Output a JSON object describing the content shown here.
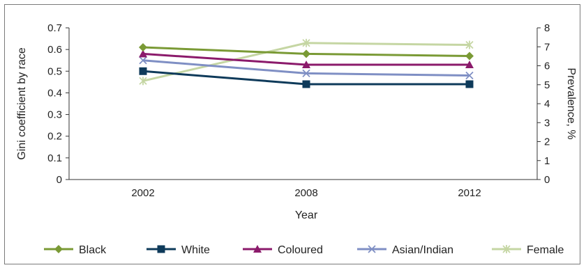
{
  "chart_data": {
    "type": "line",
    "x": [
      "2002",
      "2008",
      "2012"
    ],
    "xlabel": "Year",
    "ylabel_left": "Gini coefficient by race",
    "ylabel_right": "Prevalence, %",
    "ylim_left": [
      0,
      0.7
    ],
    "yticks_left": [
      "0",
      "0.1",
      "0.2",
      "0.3",
      "0.4",
      "0.5",
      "0.6",
      "0.7"
    ],
    "ylim_right": [
      0,
      8
    ],
    "yticks_right": [
      "0",
      "1",
      "2",
      "3",
      "4",
      "5",
      "6",
      "7",
      "8"
    ],
    "grid": false,
    "legend_position": "bottom",
    "series": [
      {
        "name": "Black",
        "axis": "left",
        "values": [
          0.61,
          0.58,
          0.57
        ],
        "color": "#7a9a35",
        "marker": "diamond"
      },
      {
        "name": "White",
        "axis": "left",
        "values": [
          0.5,
          0.44,
          0.44
        ],
        "color": "#0e3a5a",
        "marker": "square"
      },
      {
        "name": "Coloured",
        "axis": "left",
        "values": [
          0.58,
          0.53,
          0.53
        ],
        "color": "#8b1a6b",
        "marker": "triangle"
      },
      {
        "name": "Asian/Indian",
        "axis": "left",
        "values": [
          0.55,
          0.49,
          0.48
        ],
        "color": "#7f8fc4",
        "marker": "x"
      },
      {
        "name": "Female",
        "axis": "right",
        "values": [
          5.2,
          7.2,
          7.1
        ],
        "color": "#c5d6a3",
        "marker": "star"
      }
    ]
  }
}
